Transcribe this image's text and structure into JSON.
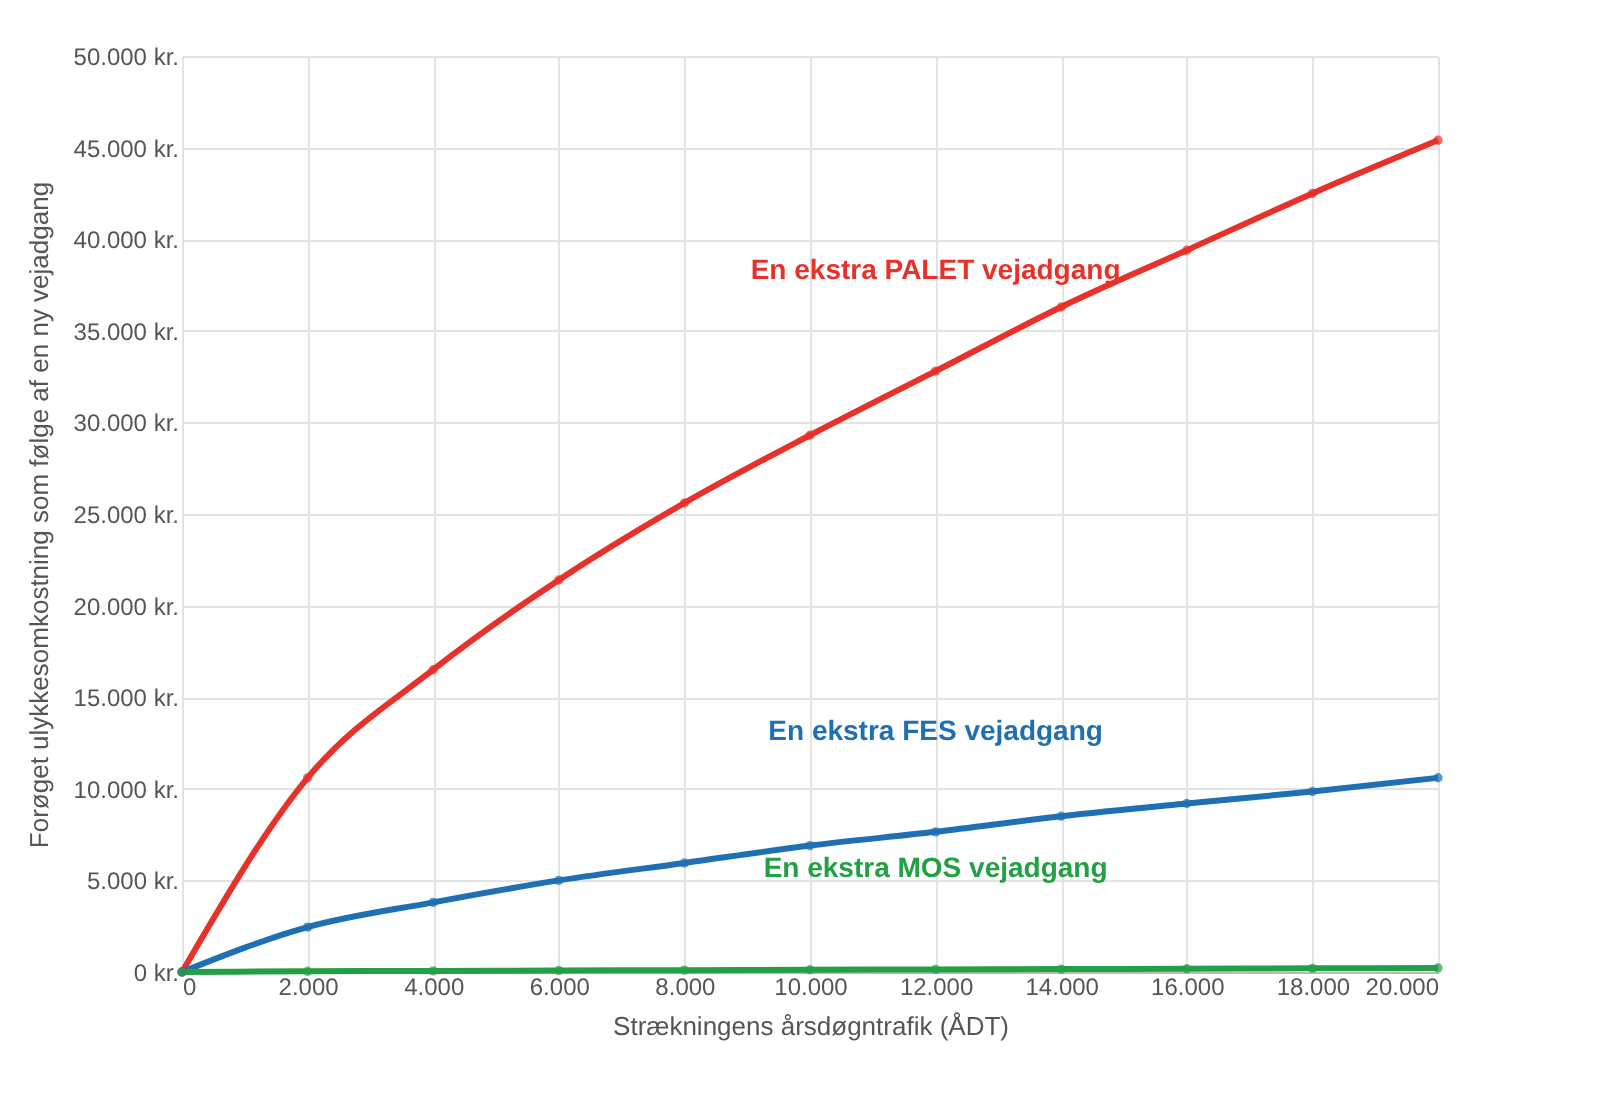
{
  "chart_data": {
    "type": "line",
    "xlabel": "Strækningens årsdøgntrafik (ÅDT)",
    "ylabel": "Forøget ulykkesomkostning som følge af en ny vejadgang",
    "x": [
      0,
      2000,
      4000,
      6000,
      8000,
      10000,
      12000,
      14000,
      16000,
      18000,
      20000
    ],
    "series": [
      {
        "name": "En ekstra PALET vejadgang",
        "color": "#e8312a",
        "values": [
          0,
          10600,
          16500,
          21400,
          25600,
          29300,
          32800,
          36300,
          39400,
          42500,
          45400
        ]
      },
      {
        "name": "En ekstra FES vejadgang",
        "color": "#1f6fb5",
        "values": [
          0,
          2450,
          3800,
          5000,
          5950,
          6900,
          7650,
          8500,
          9200,
          9850,
          10600
        ]
      },
      {
        "name": "En ekstra MOS vejadgang",
        "color": "#22a043",
        "values": [
          0,
          40,
          60,
          80,
          100,
          120,
          140,
          160,
          180,
          200,
          220
        ]
      }
    ],
    "xlim": [
      0,
      20000
    ],
    "xticks": [
      0,
      {
        "value": 2000,
        "label": "2.000"
      },
      {
        "value": 4000,
        "label": "4.000"
      },
      {
        "value": 6000,
        "label": "6.000"
      },
      {
        "value": 8000,
        "label": "8.000"
      },
      {
        "value": 10000,
        "label": "10.000"
      },
      {
        "value": 12000,
        "label": "12.000"
      },
      {
        "value": 14000,
        "label": "14.000"
      },
      {
        "value": 16000,
        "label": "16.000"
      },
      {
        "value": 18000,
        "label": "18.000"
      },
      {
        "value": 20000,
        "label": "20.000"
      }
    ],
    "ylim": [
      0,
      50000
    ],
    "yticks": [
      {
        "value": 0,
        "label": "0 kr."
      },
      {
        "value": 5000,
        "label": "5.000 kr."
      },
      {
        "value": 10000,
        "label": "10.000 kr."
      },
      {
        "value": 15000,
        "label": "15.000 kr."
      },
      {
        "value": 20000,
        "label": "20.000 kr."
      },
      {
        "value": 25000,
        "label": "25.000 kr."
      },
      {
        "value": 30000,
        "label": "30.000 kr."
      },
      {
        "value": 35000,
        "label": "35.000 kr."
      },
      {
        "value": 40000,
        "label": "40.000 kr."
      },
      {
        "value": 45000,
        "label": "45.000 kr."
      },
      {
        "value": 50000,
        "label": "50.000 kr."
      }
    ],
    "grid": true,
    "marker": "circle",
    "line_style": "solid"
  }
}
